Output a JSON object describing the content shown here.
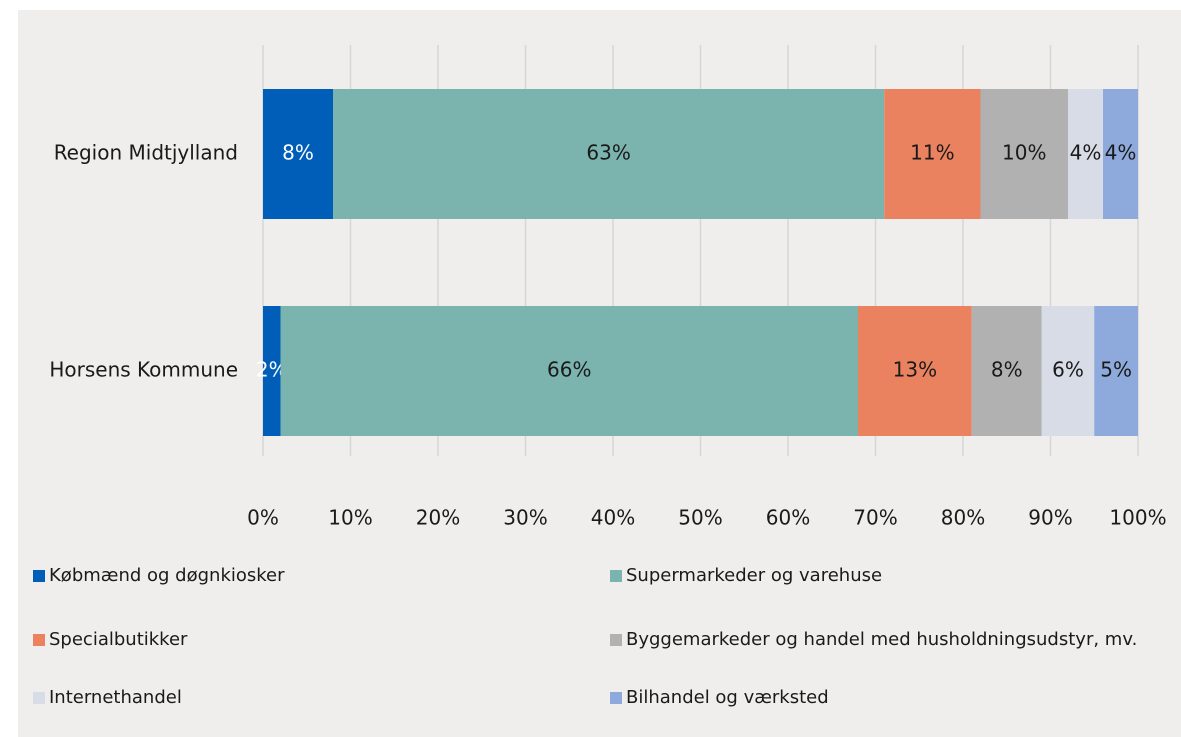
{
  "chart_data": {
    "type": "stacked-bar-horizontal",
    "categories": [
      "Region Midtjylland",
      "Horsens Kommune"
    ],
    "series": [
      {
        "name": "Købmænd og døgnkiosker",
        "color": "#005eb8",
        "label_color": "#ffffff",
        "values": [
          8,
          2
        ],
        "value_labels": [
          "8%",
          "2%"
        ]
      },
      {
        "name": "Supermarkeder og varehuse",
        "color": "#7bb4af",
        "label_color": "#1a1a1a",
        "values": [
          63,
          66
        ],
        "value_labels": [
          "63%",
          "66%"
        ]
      },
      {
        "name": "Specialbutikker",
        "color": "#ea825f",
        "label_color": "#1a1a1a",
        "values": [
          11,
          13
        ],
        "value_labels": [
          "11%",
          "13%"
        ]
      },
      {
        "name": "Byggemarkeder og handel med husholdningsudstyr, mv.",
        "color": "#b1b1b1",
        "label_color": "#1a1a1a",
        "values": [
          10,
          8
        ],
        "value_labels": [
          "10%",
          "8%"
        ]
      },
      {
        "name": "Internethandel",
        "color": "#d7dce6",
        "label_color": "#1a1a1a",
        "values": [
          4,
          6
        ],
        "value_labels": [
          "4%",
          "6%"
        ]
      },
      {
        "name": "Bilhandel og værksted",
        "color": "#8eaadd",
        "label_color": "#1a1a1a",
        "values": [
          4,
          5
        ],
        "value_labels": [
          "4%",
          "5%"
        ]
      }
    ],
    "xlim": [
      0,
      100
    ],
    "xticks": [
      {
        "value": 0,
        "label": "0%"
      },
      {
        "value": 10,
        "label": "10%"
      },
      {
        "value": 20,
        "label": "20%"
      },
      {
        "value": 30,
        "label": "30%"
      },
      {
        "value": 40,
        "label": "40%"
      },
      {
        "value": 50,
        "label": "50%"
      },
      {
        "value": 60,
        "label": "60%"
      },
      {
        "value": 70,
        "label": "70%"
      },
      {
        "value": 80,
        "label": "80%"
      },
      {
        "value": 90,
        "label": "90%"
      },
      {
        "value": 100,
        "label": "100%"
      }
    ],
    "grid": true,
    "legend": "bottom"
  }
}
